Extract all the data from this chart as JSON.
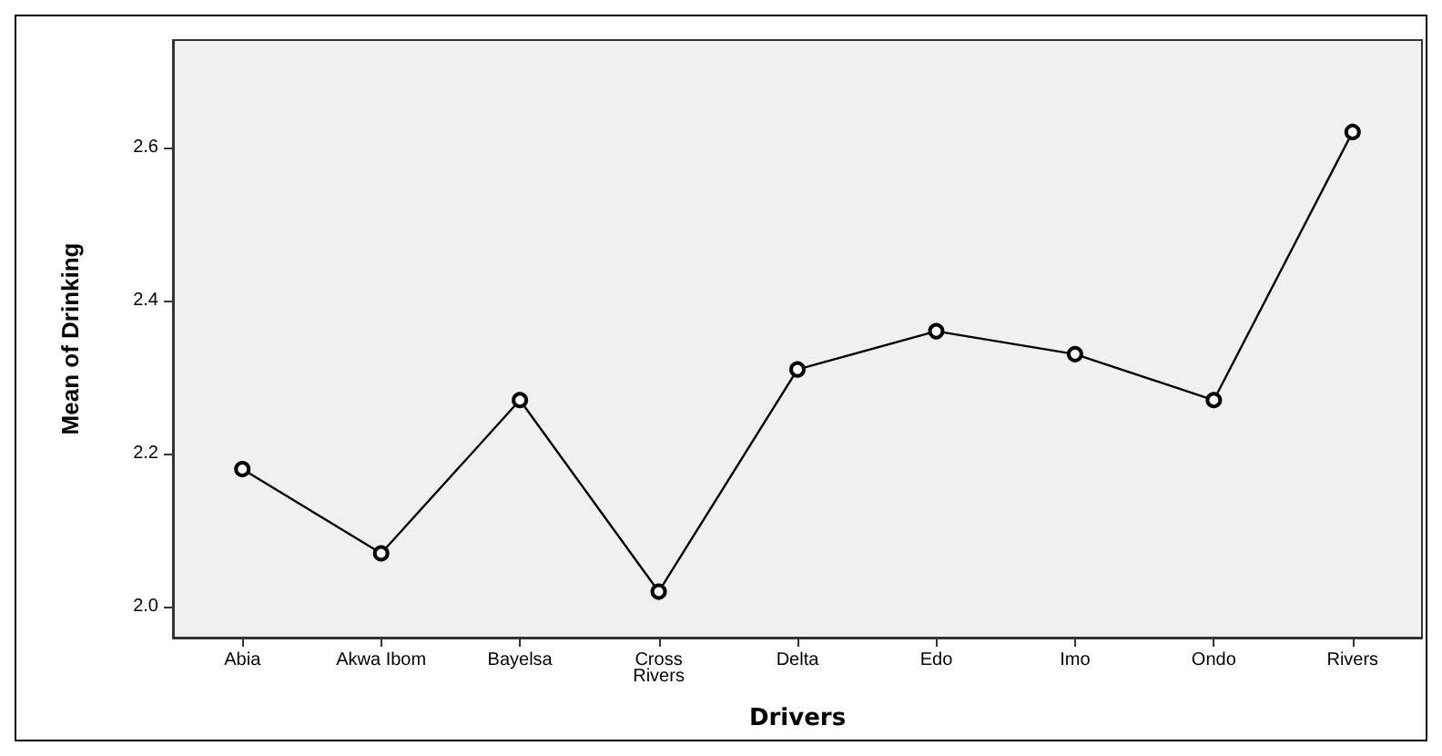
{
  "chart_data": {
    "type": "line",
    "xlabel": "Drivers",
    "ylabel": "Mean of Drinking",
    "categories": [
      "Abia",
      "Akwa Ibom",
      "Bayelsa",
      "Cross\nRivers",
      "Delta",
      "Edo",
      "Imo",
      "Ondo",
      "Rivers"
    ],
    "series": [
      {
        "color": "#000000",
        "values": [
          2.18,
          2.07,
          2.27,
          2.02,
          2.31,
          2.36,
          2.33,
          2.27,
          2.62
        ]
      }
    ],
    "ylim": [
      1.96,
      2.74
    ],
    "yticks": [
      {
        "value": 2.0,
        "label": "2.0"
      },
      {
        "value": 2.2,
        "label": "2.2"
      },
      {
        "value": 2.4,
        "label": "2.4"
      },
      {
        "value": 2.6,
        "label": "2.6"
      }
    ],
    "grid": false,
    "marker": "circle",
    "line_style": "solid"
  }
}
